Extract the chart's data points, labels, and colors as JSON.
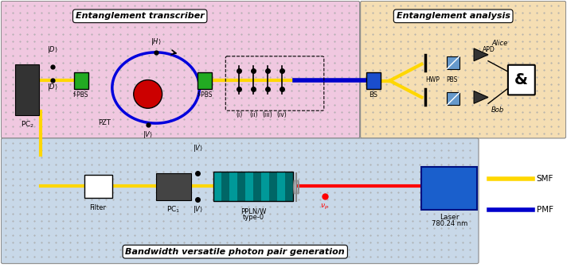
{
  "fig_width": 7.12,
  "fig_height": 3.36,
  "dpi": 100,
  "bg_top_left": "#f0c8e0",
  "bg_top_right": "#f5deb3",
  "bg_bottom": "#c8d8e8",
  "smf_color": "#FFD700",
  "pmf_color": "#0000CC",
  "red_color": "#FF0000",
  "green_color": "#228B22",
  "teal_color": "#008080",
  "title_transcriber": "Entanglement transcriber",
  "title_analysis": "Entanglement analysis",
  "title_bottom": "Bandwidth versatile photon pair generation",
  "smf_label": "SMF",
  "pmf_label": "PMF"
}
